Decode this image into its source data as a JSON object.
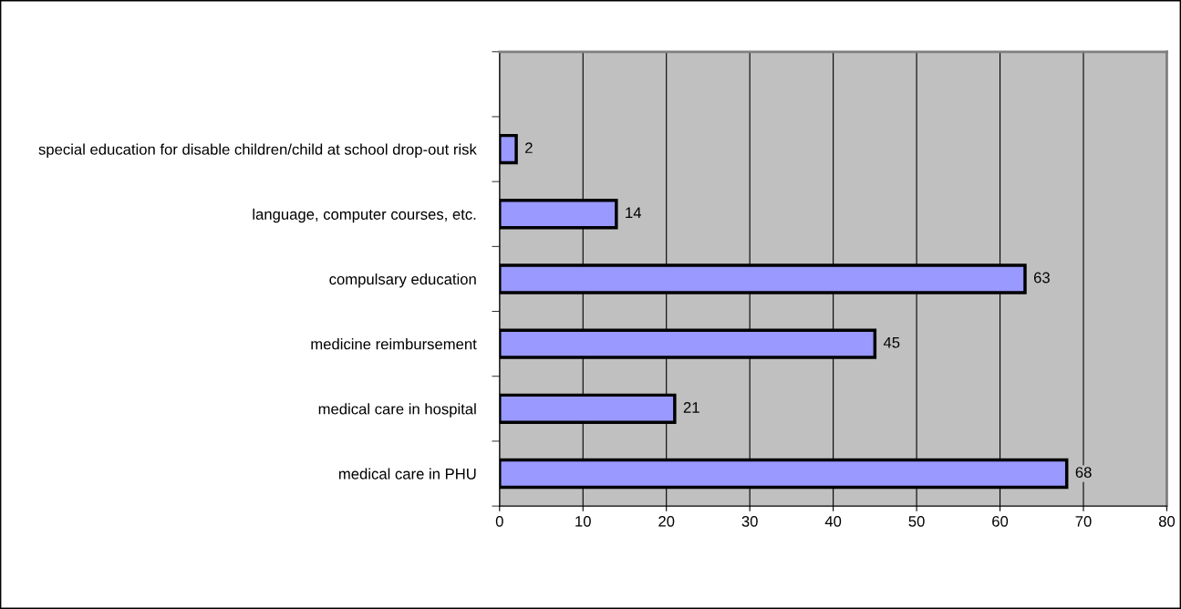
{
  "chart_data": {
    "type": "bar",
    "orientation": "horizontal",
    "categories": [
      null,
      "special education for disable children/child at school drop-out risk",
      "language, computer courses, etc.",
      "compulsary education",
      "medicine reimbursement",
      "medical care in hospital",
      "medical care in PHU"
    ],
    "values": [
      null,
      2,
      14,
      63,
      45,
      21,
      68
    ],
    "color": "#9999ff",
    "xlim": [
      0,
      80
    ],
    "xticks": [
      0,
      10,
      20,
      30,
      40,
      50,
      60,
      70,
      80
    ],
    "grid": "x",
    "data_labels": true,
    "legend": false
  }
}
